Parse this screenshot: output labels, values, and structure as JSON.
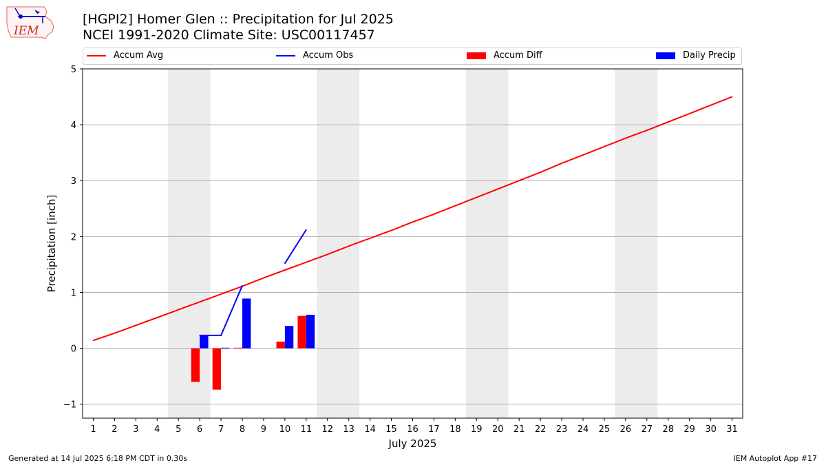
{
  "header": {
    "logo_text": "IEM",
    "title_line1": "[HGPI2] Homer Glen :: Precipitation for Jul 2025",
    "title_line2": "NCEI 1991-2020 Climate Site: USC00117457"
  },
  "legend": {
    "items": [
      {
        "label": "Accum Avg",
        "kind": "line",
        "color": "#ff0000"
      },
      {
        "label": "Accum Obs",
        "kind": "line",
        "color": "#0000ff"
      },
      {
        "label": "Accum Diff",
        "kind": "box",
        "color": "#ff0000"
      },
      {
        "label": "Daily Precip",
        "kind": "box",
        "color": "#0000ff"
      }
    ]
  },
  "footer": {
    "left": "Generated at 14 Jul 2025 6:18 PM CDT in 0.30s",
    "right": "IEM Autoplot App #17"
  },
  "chart_data": {
    "type": "bar",
    "xlabel": "July 2025",
    "ylabel": "Precipitation [inch]",
    "xlim": [
      0.5,
      31.5
    ],
    "ylim": [
      -1.25,
      5
    ],
    "yticks": [
      -1,
      0,
      1,
      2,
      3,
      4,
      5
    ],
    "x": [
      1,
      2,
      3,
      4,
      5,
      6,
      7,
      8,
      9,
      10,
      11,
      12,
      13,
      14,
      15,
      16,
      17,
      18,
      19,
      20,
      21,
      22,
      23,
      24,
      25,
      26,
      27,
      28,
      29,
      30,
      31
    ],
    "weekends": [
      [
        5,
        6
      ],
      [
        12,
        13
      ],
      [
        19,
        20
      ],
      [
        26,
        27
      ]
    ],
    "grid": "y",
    "legend_position": "top",
    "series": [
      {
        "name": "Accum Avg",
        "kind": "line",
        "color": "#ff0000",
        "x": [
          1,
          2,
          3,
          4,
          5,
          6,
          7,
          8,
          9,
          10,
          11,
          12,
          13,
          14,
          15,
          16,
          17,
          18,
          19,
          20,
          21,
          22,
          23,
          24,
          25,
          26,
          27,
          28,
          29,
          30,
          31
        ],
        "values": [
          0.14,
          0.27,
          0.41,
          0.55,
          0.69,
          0.83,
          0.97,
          1.11,
          1.26,
          1.4,
          1.54,
          1.68,
          1.83,
          1.97,
          2.11,
          2.26,
          2.4,
          2.55,
          2.7,
          2.85,
          3.0,
          3.15,
          3.31,
          3.46,
          3.61,
          3.76,
          3.9,
          4.05,
          4.2,
          4.35,
          4.5
        ]
      },
      {
        "name": "Accum Obs",
        "kind": "line",
        "color": "#0000ff",
        "x": [
          6,
          7,
          8,
          10,
          11
        ],
        "values": [
          0.23,
          0.23,
          1.12,
          1.52,
          2.12
        ]
      },
      {
        "name": "Accum Diff",
        "kind": "bar",
        "color": "#ff0000",
        "x": [
          6,
          7,
          8,
          10,
          11
        ],
        "values": [
          -0.6,
          -0.74,
          0.01,
          0.12,
          0.58
        ]
      },
      {
        "name": "Daily Precip",
        "kind": "bar",
        "color": "#0000ff",
        "x": [
          6,
          7,
          8,
          10,
          11
        ],
        "values": [
          0.23,
          0.01,
          0.89,
          0.4,
          0.6
        ]
      }
    ]
  }
}
